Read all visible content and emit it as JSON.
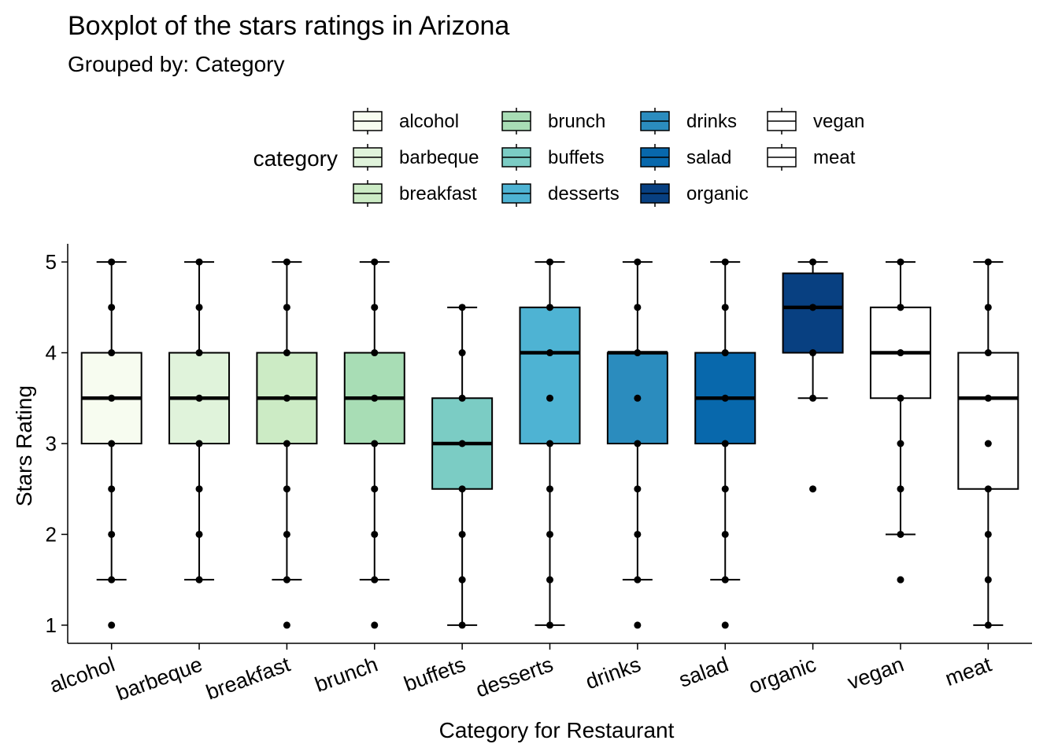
{
  "chart_data": {
    "type": "boxplot",
    "title": "Boxplot of the stars ratings in Arizona",
    "subtitle": "Grouped by: Category",
    "xlabel": "Category for Restaurant",
    "ylabel": "Stars Rating",
    "ylim": [
      0.8,
      5.2
    ],
    "yticks": [
      1,
      2,
      3,
      4,
      5
    ],
    "grid": false,
    "legend": {
      "title": "category",
      "placement": "top",
      "columns": [
        [
          "alcohol",
          "barbeque",
          "breakfast"
        ],
        [
          "brunch",
          "buffets",
          "desserts"
        ],
        [
          "drinks",
          "salad",
          "organic"
        ],
        [
          "vegan",
          "meat"
        ]
      ]
    },
    "categories": [
      "alcohol",
      "barbeque",
      "breakfast",
      "brunch",
      "buffets",
      "desserts",
      "drinks",
      "salad",
      "organic",
      "vegan",
      "meat"
    ],
    "colors": [
      "#f7fcf0",
      "#e0f3db",
      "#ccebc5",
      "#a8ddb5",
      "#7bccc4",
      "#4eb3d3",
      "#2b8cbe",
      "#0868ac",
      "#084081",
      "#ffffff",
      "#ffffff"
    ],
    "series": [
      {
        "category": "alcohol",
        "q1": 3.0,
        "median": 3.5,
        "q3": 4.0,
        "whisker_low": 1.5,
        "whisker_high": 5.0,
        "points": [
          1,
          1.5,
          2,
          2.5,
          3,
          3.5,
          4,
          4.5,
          5
        ]
      },
      {
        "category": "barbeque",
        "q1": 3.0,
        "median": 3.5,
        "q3": 4.0,
        "whisker_low": 1.5,
        "whisker_high": 5.0,
        "points": [
          1.5,
          2,
          2.5,
          3,
          3.5,
          4,
          4.5,
          5
        ]
      },
      {
        "category": "breakfast",
        "q1": 3.0,
        "median": 3.5,
        "q3": 4.0,
        "whisker_low": 1.5,
        "whisker_high": 5.0,
        "points": [
          1,
          1.5,
          2,
          2.5,
          3,
          3.5,
          4,
          4.5,
          5
        ]
      },
      {
        "category": "brunch",
        "q1": 3.0,
        "median": 3.5,
        "q3": 4.0,
        "whisker_low": 1.5,
        "whisker_high": 5.0,
        "points": [
          1,
          1.5,
          2,
          2.5,
          3,
          3.5,
          4,
          4.5,
          5
        ]
      },
      {
        "category": "buffets",
        "q1": 2.5,
        "median": 3.0,
        "q3": 3.5,
        "whisker_low": 1.0,
        "whisker_high": 4.5,
        "points": [
          1,
          1.5,
          2,
          2.5,
          3,
          3.5,
          4,
          4.5
        ]
      },
      {
        "category": "desserts",
        "q1": 3.0,
        "median": 4.0,
        "q3": 4.5,
        "whisker_low": 1.0,
        "whisker_high": 5.0,
        "points": [
          1,
          1.5,
          2,
          2.5,
          3,
          3.5,
          4,
          4.5,
          5
        ]
      },
      {
        "category": "drinks",
        "q1": 3.0,
        "median": 4.0,
        "q3": 4.0,
        "whisker_low": 1.5,
        "whisker_high": 5.0,
        "points": [
          1,
          1.5,
          2,
          2.5,
          3,
          3.5,
          4,
          4.5,
          5
        ]
      },
      {
        "category": "salad",
        "q1": 3.0,
        "median": 3.5,
        "q3": 4.0,
        "whisker_low": 1.5,
        "whisker_high": 5.0,
        "points": [
          1,
          1.5,
          2,
          2.5,
          3,
          3.5,
          4,
          4.5,
          5
        ]
      },
      {
        "category": "organic",
        "q1": 4.0,
        "median": 4.5,
        "q3": 4.875,
        "whisker_low": 3.5,
        "whisker_high": 5.0,
        "points": [
          2.5,
          3.5,
          4,
          4.5,
          5
        ]
      },
      {
        "category": "vegan",
        "q1": 3.5,
        "median": 4.0,
        "q3": 4.5,
        "whisker_low": 2.0,
        "whisker_high": 5.0,
        "points": [
          1.5,
          2,
          2.5,
          3,
          3.5,
          4,
          4.5,
          5
        ]
      },
      {
        "category": "meat",
        "q1": 2.5,
        "median": 3.5,
        "q3": 4.0,
        "whisker_low": 1.0,
        "whisker_high": 5.0,
        "points": [
          1,
          1.5,
          2,
          2.5,
          3,
          3.5,
          4,
          4.5,
          5
        ]
      }
    ]
  }
}
